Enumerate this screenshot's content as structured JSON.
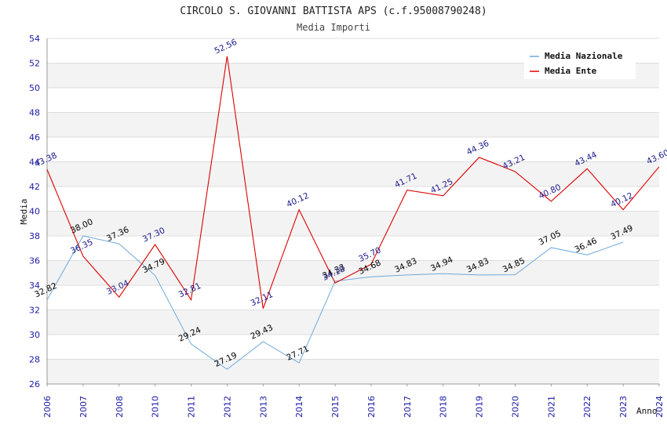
{
  "chart_data": {
    "type": "line",
    "title": "CIRCOLO S. GIOVANNI BATTISTA APS (c.f.95008790248)",
    "subtitle": "Media Importi",
    "xlabel": "Anno",
    "ylabel": "Media",
    "ylim": [
      26,
      54
    ],
    "yticks": [
      26,
      28,
      30,
      32,
      34,
      36,
      38,
      40,
      42,
      44,
      46,
      48,
      50,
      52,
      54
    ],
    "categories": [
      "2006",
      "2007",
      "2008",
      "2010",
      "2011",
      "2012",
      "2013",
      "2014",
      "2015",
      "2016",
      "2017",
      "2018",
      "2019",
      "2020",
      "2021",
      "2022",
      "2023",
      "2024"
    ],
    "grid": "horizontal bands",
    "legend_position": "top-right",
    "series": [
      {
        "name": "Media Nazionale",
        "color": "#6fa8dc",
        "label_color": "#000000",
        "values": [
          32.82,
          38.0,
          37.36,
          34.79,
          29.24,
          27.19,
          29.43,
          27.71,
          34.33,
          34.68,
          34.83,
          34.94,
          34.83,
          34.85,
          37.05,
          36.46,
          37.49,
          null
        ],
        "labels": [
          "32.82",
          "38.00",
          "37.36",
          "34.79",
          "29.24",
          "27.19",
          "29.43",
          "27.71",
          "34.33",
          "34.68",
          "34.83",
          "34.94",
          "34.83",
          "34.85",
          "37.05",
          "36.46",
          "37.49",
          ""
        ]
      },
      {
        "name": "Media Ente",
        "color": "#dd0000",
        "label_color": "#1a1a8c",
        "values": [
          43.38,
          36.35,
          33.04,
          37.3,
          32.81,
          52.56,
          32.11,
          40.12,
          34.18,
          35.7,
          41.71,
          41.25,
          44.36,
          43.21,
          40.8,
          43.44,
          40.12,
          43.6
        ],
        "labels": [
          "43.38",
          "36.35",
          "33.04",
          "37.30",
          "32.81",
          "52.56",
          "32.11",
          "40.12",
          "34.18",
          "35.70",
          "41.71",
          "41.25",
          "44.36",
          "43.21",
          "40.80",
          "43.44",
          "40.12",
          "43.60"
        ]
      }
    ]
  }
}
